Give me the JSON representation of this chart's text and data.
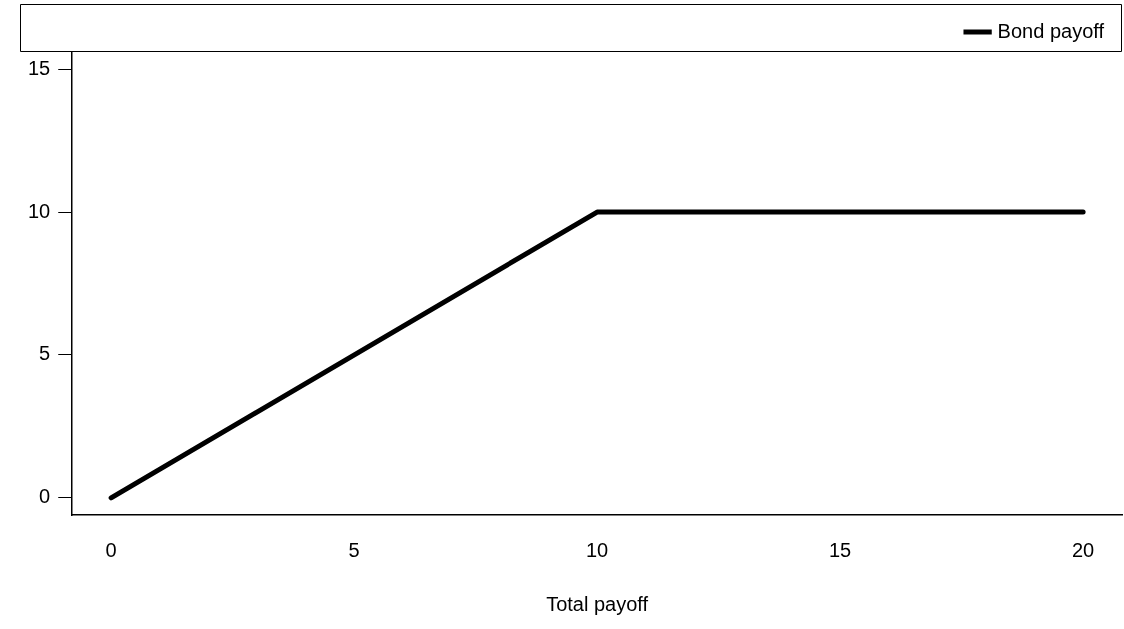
{
  "chart_data": {
    "type": "line",
    "xlabel": "Total payoff",
    "x": [
      0,
      10,
      20
    ],
    "series": [
      {
        "name": "Bond payoff",
        "color": "#000000",
        "values": [
          0,
          10,
          10
        ]
      }
    ],
    "xlim": [
      -0.8,
      20.8
    ],
    "xticks": [
      0,
      5,
      10,
      15,
      20
    ],
    "ylim": [
      -0.6,
      15.6
    ],
    "yticks": [
      0,
      5,
      10,
      15
    ],
    "grid": false,
    "legend": "top right",
    "marker": "none",
    "line_style": "solid"
  }
}
